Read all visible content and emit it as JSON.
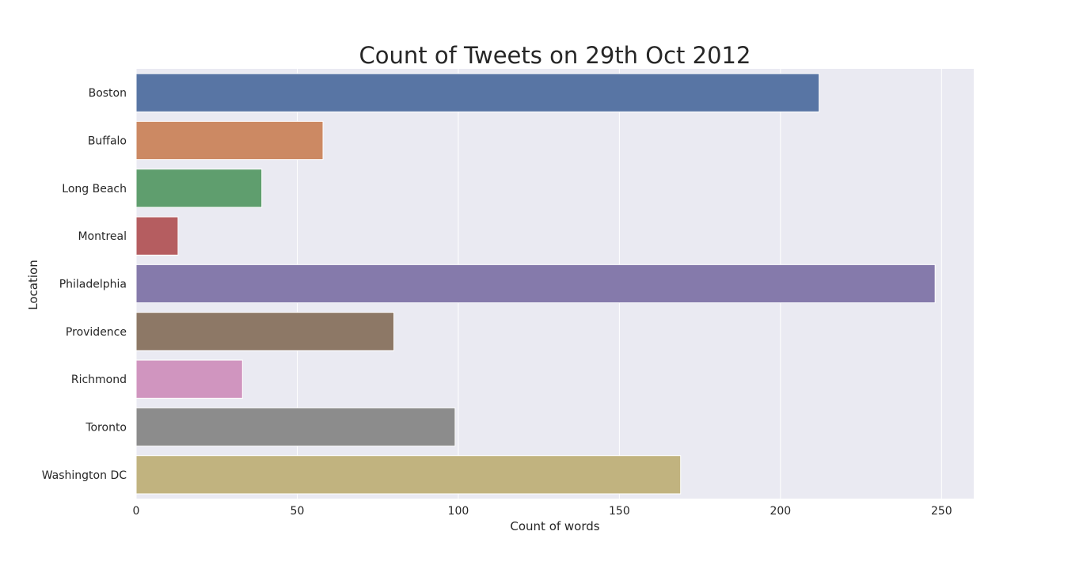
{
  "chart_data": {
    "type": "bar",
    "orientation": "horizontal",
    "title": "Count of Tweets on 29th Oct 2012",
    "xlabel": "Count of words",
    "ylabel": "Location",
    "categories": [
      "Boston",
      "Buffalo",
      "Long Beach",
      "Montreal",
      "Philadelphia",
      "Providence",
      "Richmond",
      "Toronto",
      "Washington DC"
    ],
    "values": [
      212,
      58,
      39,
      13,
      248,
      80,
      33,
      99,
      169
    ],
    "colors": [
      "#5875a4",
      "#cc8963",
      "#5f9e6e",
      "#b55d60",
      "#857aab",
      "#8d7866",
      "#d095bf",
      "#8c8c8c",
      "#c1b37f"
    ],
    "xlim": [
      0,
      260
    ],
    "xticks": [
      0,
      50,
      100,
      150,
      200,
      250
    ],
    "grid": true,
    "background": "#eaeaf2"
  }
}
